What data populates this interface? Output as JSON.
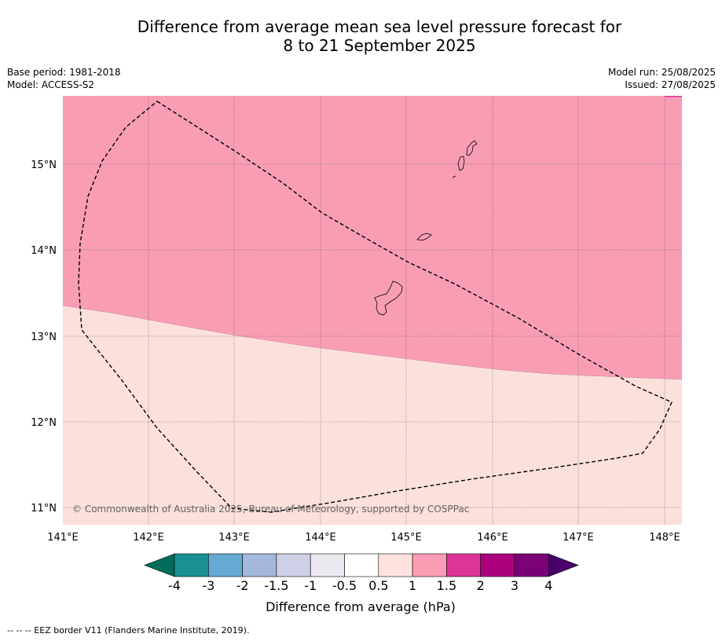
{
  "title": {
    "line1": "Difference from average mean sea level pressure forecast for",
    "line2": "8 to 21 September 2025"
  },
  "meta": {
    "base_period": "Base period: 1981-2018",
    "model": "Model: ACCESS-S2",
    "model_run": "Model run: 25/08/2025",
    "issued": "Issued: 27/08/2025"
  },
  "map": {
    "region_lon": [
      141.0,
      148.2
    ],
    "region_lat": [
      10.8,
      15.8
    ],
    "lon_ticks": [
      "141°E",
      "142°E",
      "143°E",
      "144°E",
      "145°E",
      "146°E",
      "147°E",
      "148°E"
    ],
    "lat_ticks": [
      "15°N",
      "14°N",
      "13°N",
      "12°N",
      "11°N"
    ],
    "copyright": "© Commonwealth of Australia 2025, Bureau of Meteorology, supported by COSPPac",
    "field_bands": [
      {
        "range": "1 to 1.5",
        "color": "#f99db5"
      },
      {
        "range": "0.5 to 1",
        "color": "#fce0dc"
      }
    ]
  },
  "colorbar": {
    "ticks": [
      "-4",
      "-3",
      "-2",
      "-1.5",
      "-1",
      "-0.5",
      "0.5",
      "1",
      "1.5",
      "2",
      "3",
      "4"
    ],
    "colors": [
      "#1a9095",
      "#66aad4",
      "#a4b7dc",
      "#cfcfe6",
      "#ebe9ef",
      "#ffffff",
      "#fde2de",
      "#f99db5",
      "#dd3597",
      "#ac017e",
      "#7a0178"
    ],
    "low_extend_color": "#016c59",
    "high_extend_color": "#49006a",
    "label": "Difference from average (hPa)"
  },
  "footnote": "--  --  -- EEZ border V11 (Flanders Marine Institute, 2019)."
}
